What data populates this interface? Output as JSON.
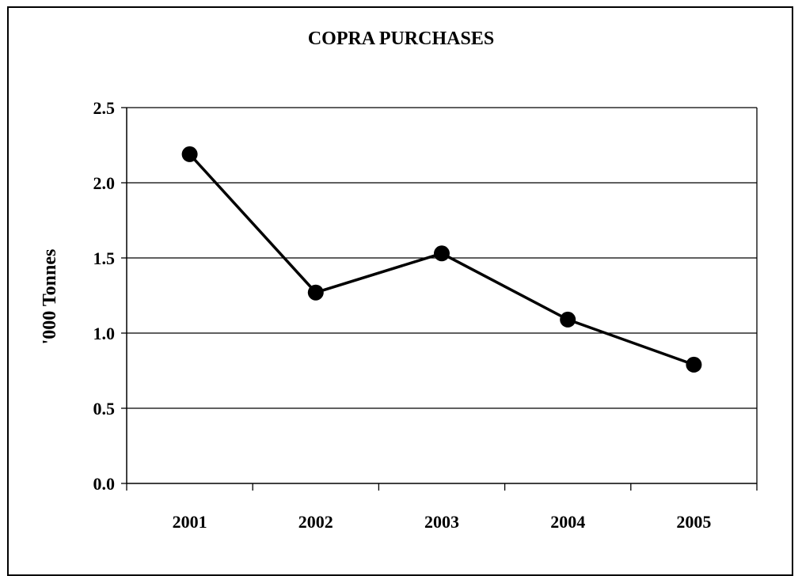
{
  "chart_data": {
    "type": "line",
    "title": "COPRA PURCHASES",
    "xlabel": "",
    "ylabel": "'000 Tonnes",
    "categories": [
      "2001",
      "2002",
      "2003",
      "2004",
      "2005"
    ],
    "series": [
      {
        "values": [
          2.19,
          1.27,
          1.53,
          1.09,
          0.79
        ]
      }
    ],
    "ylim": [
      0,
      2.5
    ],
    "yticks": [
      "0.0",
      "0.5",
      "1.0",
      "1.5",
      "2.0",
      "2.5"
    ],
    "grid": true,
    "legend": "none",
    "line_color": "#000000",
    "marker": "circle"
  }
}
